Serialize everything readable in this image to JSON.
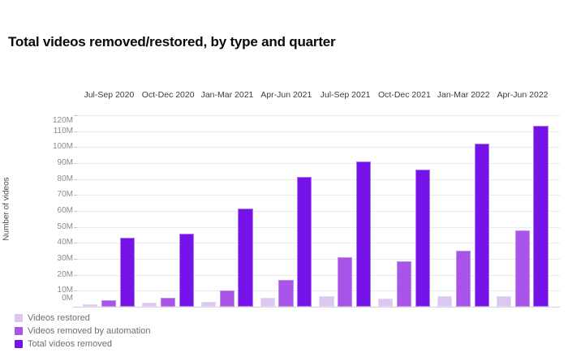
{
  "title": "Total videos removed/restored, by type and quarter",
  "chart_data": {
    "type": "bar",
    "title": "Total videos removed/restored, by type and quarter",
    "categories": [
      "Jul-Sep 2020",
      "Oct-Dec 2020",
      "Jan-Mar 2021",
      "Apr-Jun 2021",
      "Jul-Sep 2021",
      "Oct-Dec 2021",
      "Jan-Mar 2022",
      "Apr-Jun 2022"
    ],
    "series": [
      {
        "name": "Videos restored",
        "color": "#dcc7f2",
        "values": [
          1.5,
          2.4,
          3.2,
          5.4,
          6.5,
          5.1,
          6.5,
          6.5
        ]
      },
      {
        "name": "Videos removed by automation",
        "color": "#a854e8",
        "values": [
          4.3,
          5.6,
          10.0,
          16.9,
          31.2,
          28.6,
          34.9,
          47.8
        ]
      },
      {
        "name": "Total videos removed",
        "color": "#7412e8",
        "values": [
          43.1,
          46.0,
          61.5,
          81.5,
          91.0,
          85.7,
          102.3,
          113.4
        ]
      }
    ],
    "xlabel": "",
    "ylabel": "Number of videos",
    "ylim": [
      0,
      120
    ],
    "ytick_step": 10,
    "ytick_suffix": "M",
    "value_unit": "millions of videos",
    "grid": true,
    "legend_position": "bottom-left"
  },
  "legend": {
    "items": [
      {
        "label": "Videos restored",
        "color": "#dcc7f2"
      },
      {
        "label": "Videos removed by automation",
        "color": "#a854e8"
      },
      {
        "label": "Total videos removed",
        "color": "#7412e8"
      }
    ]
  }
}
